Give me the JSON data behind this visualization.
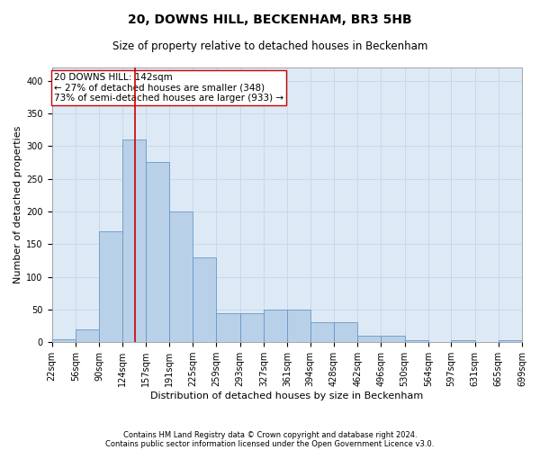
{
  "title": "20, DOWNS HILL, BECKENHAM, BR3 5HB",
  "subtitle": "Size of property relative to detached houses in Beckenham",
  "xlabel": "Distribution of detached houses by size in Beckenham",
  "ylabel": "Number of detached properties",
  "footnote1": "Contains HM Land Registry data © Crown copyright and database right 2024.",
  "footnote2": "Contains public sector information licensed under the Open Government Licence v3.0.",
  "annotation_line1": "20 DOWNS HILL: 142sqm",
  "annotation_line2": "← 27% of detached houses are smaller (348)",
  "annotation_line3": "73% of semi-detached houses are larger (933) →",
  "bin_edges": [
    22,
    56,
    90,
    124,
    157,
    191,
    225,
    259,
    293,
    327,
    361,
    394,
    428,
    462,
    496,
    530,
    564,
    597,
    631,
    665,
    699
  ],
  "bar_heights": [
    5,
    20,
    170,
    310,
    275,
    200,
    130,
    45,
    45,
    50,
    50,
    30,
    30,
    10,
    10,
    3,
    0,
    3,
    0,
    3
  ],
  "bar_color": "#b8d0e8",
  "bar_edge_color": "#6898c8",
  "vline_color": "#cc0000",
  "vline_x": 142,
  "annotation_box_edge": "#cc0000",
  "ylim": [
    0,
    420
  ],
  "yticks": [
    0,
    50,
    100,
    150,
    200,
    250,
    300,
    350,
    400
  ],
  "grid_color": "#c8d8ea",
  "bg_color": "#ddeaf5",
  "title_fontsize": 10,
  "subtitle_fontsize": 8.5,
  "annotation_fontsize": 7.5,
  "ylabel_fontsize": 8,
  "xlabel_fontsize": 8,
  "tick_fontsize": 7,
  "footnote_fontsize": 6
}
